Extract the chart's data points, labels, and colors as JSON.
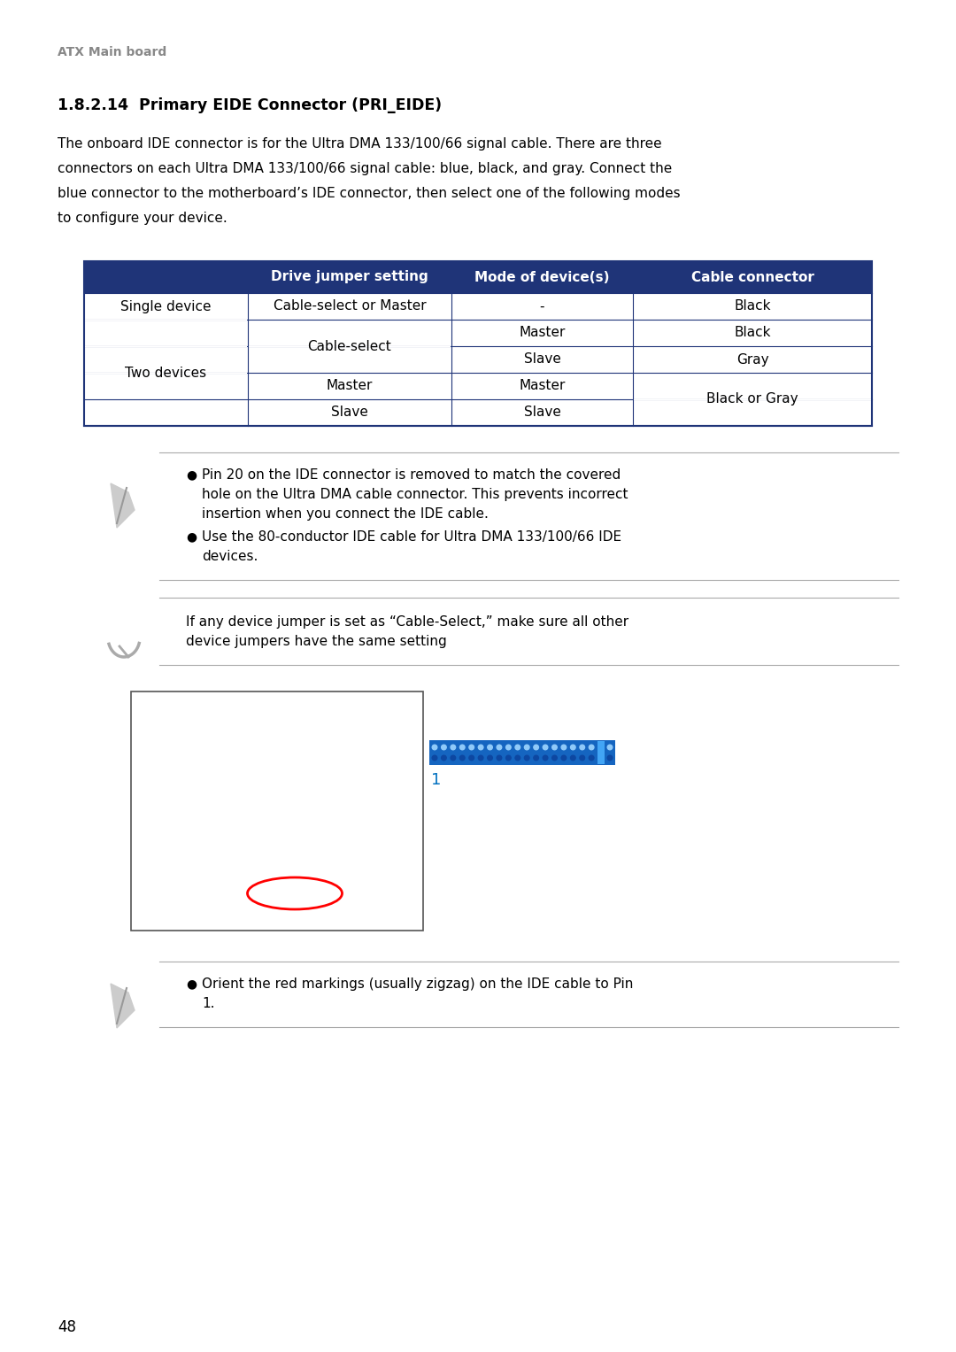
{
  "page_title": "ATX Main board",
  "section_title": "1.8.2.14  Primary EIDE Connector (PRI_EIDE)",
  "body_line1": "The onboard IDE connector is for the Ultra DMA 133/100/66 signal cable. There are three",
  "body_line2": "connectors on each Ultra DMA 133/100/66 signal cable: blue, black, and gray. Connect the",
  "body_line3": "blue connector to the motherboard’s IDE connector, then select one of the following modes",
  "body_line4": "to configure your device.",
  "table_header_color": "#1F3478",
  "table_border_color": "#1F3478",
  "table_headers": [
    "Drive jumper setting",
    "Mode of device(s)",
    "Cable connector"
  ],
  "note1_bullet1_line1": "Pin 20 on the IDE connector is removed to match the covered",
  "note1_bullet1_line2": "hole on the Ultra DMA cable connector. This prevents incorrect",
  "note1_bullet1_line3": "insertion when you connect the IDE cable.",
  "note1_bullet2_line1": "Use the 80-conductor IDE cable for Ultra DMA 133/100/66 IDE",
  "note1_bullet2_line2": "devices.",
  "note2_text_line1": "If any device jumper is set as “Cable-Select,” make sure all other",
  "note2_text_line2": "device jumpers have the same setting",
  "note3_bullet1_line1": "Orient the red markings (usually zigzag) on the IDE cable to Pin",
  "note3_bullet1_line2": "1.",
  "connector_label": "1",
  "connector_label_color": "#0070C0",
  "page_number": "48",
  "bg": "#FFFFFF",
  "gray_line_color": "#AAAAAA",
  "text_color": "#000000",
  "icon_color": "#AAAAAA"
}
